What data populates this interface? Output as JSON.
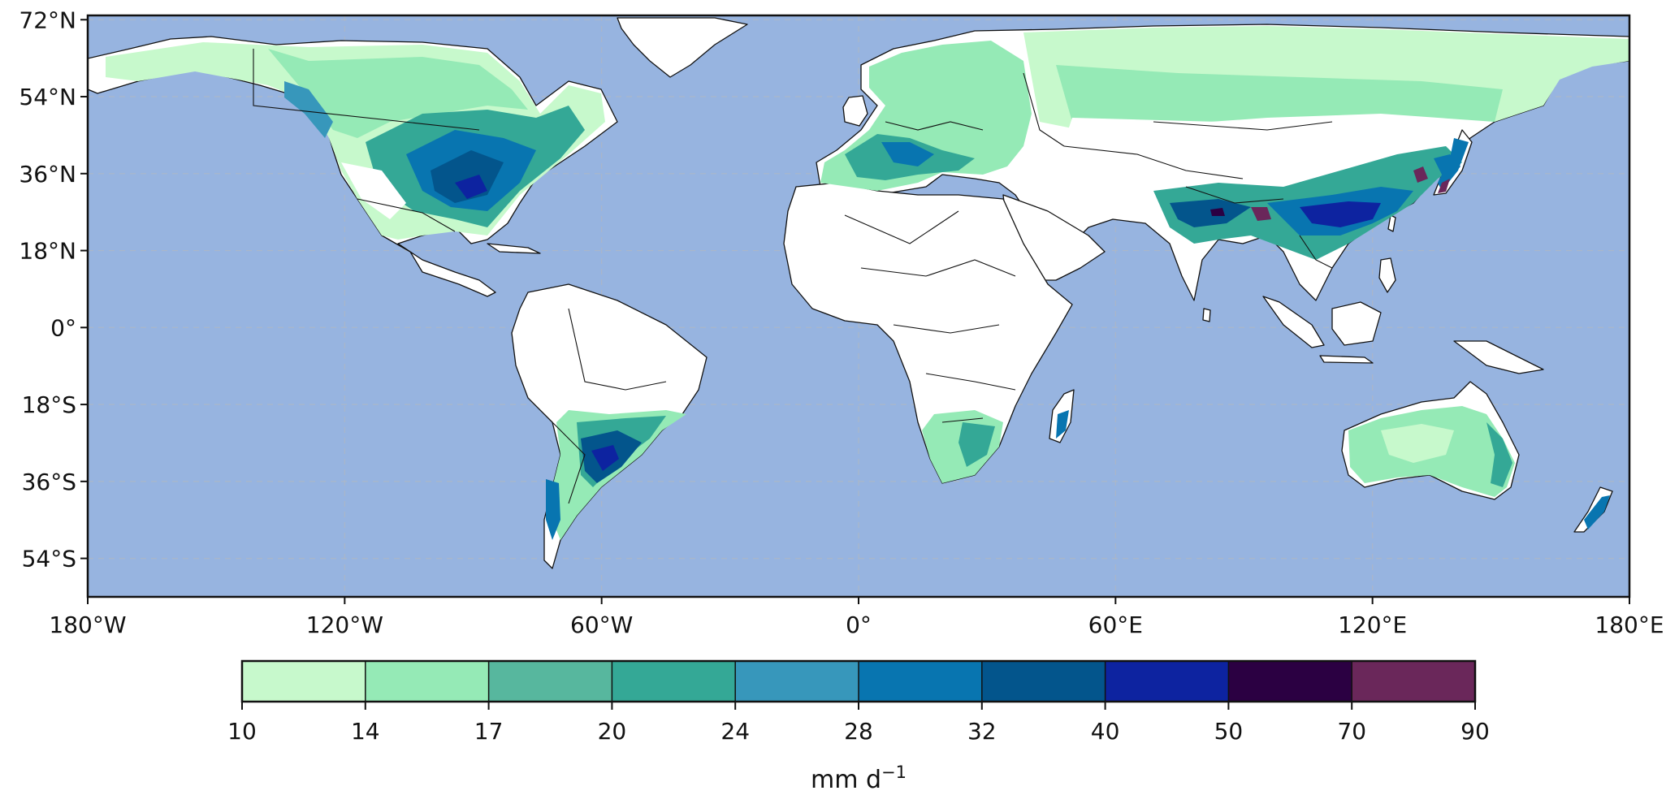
{
  "map": {
    "projection": "plate-carree",
    "lon_range": [
      -180,
      180
    ],
    "lat_range": [
      -63,
      73
    ],
    "ocean_color": "#97b4e0",
    "no_data_color": "#ffffff",
    "coastline_color": "#111111",
    "gridlines": "dashed",
    "lat_ticks": [
      72,
      54,
      36,
      18,
      0,
      -18,
      -36,
      -54
    ],
    "lon_ticks": [
      -180,
      -120,
      -60,
      0,
      60,
      120,
      180
    ],
    "lat_tick_labels": [
      "72°N",
      "54°N",
      "36°N",
      "18°N",
      "0°",
      "18°S",
      "36°S",
      "54°S"
    ],
    "lon_tick_labels": [
      "180°W",
      "120°W",
      "60°W",
      "0°",
      "60°E",
      "120°E",
      "180°E"
    ]
  },
  "colorbar": {
    "label_base": "mm d",
    "label_exponent": "−1",
    "placement": "bottom",
    "boundaries": [
      "10",
      "14",
      "17",
      "20",
      "24",
      "28",
      "32",
      "40",
      "50",
      "70",
      "90"
    ],
    "colors": [
      "#c7f9cc",
      "#95eab6",
      "#57b79e",
      "#34a896",
      "#3797bb",
      "#0875b0",
      "#03558c",
      "#0d23a0",
      "#2b0042",
      "#6a275a"
    ]
  }
}
